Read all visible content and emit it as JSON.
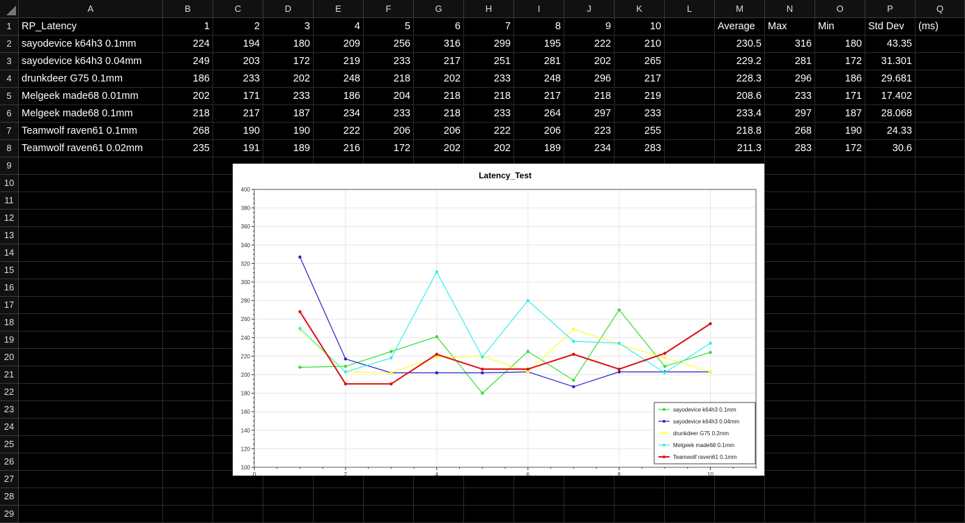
{
  "columns": [
    "A",
    "B",
    "C",
    "D",
    "E",
    "F",
    "G",
    "H",
    "I",
    "J",
    "K",
    "L",
    "M",
    "N",
    "O",
    "P",
    "Q"
  ],
  "rows": [
    "1",
    "2",
    "3",
    "4",
    "5",
    "6",
    "7",
    "8",
    "9",
    "10",
    "11",
    "12",
    "13",
    "14",
    "15",
    "16",
    "17",
    "18",
    "19",
    "20",
    "21",
    "22",
    "23",
    "24",
    "25",
    "26",
    "27",
    "28",
    "29"
  ],
  "header": {
    "label": "RP_Latency",
    "trials": [
      "1",
      "2",
      "3",
      "4",
      "5",
      "6",
      "7",
      "8",
      "9",
      "10"
    ],
    "stats": [
      "Average",
      "Max",
      "Min",
      "Std Dev",
      "(ms)"
    ]
  },
  "data_rows": [
    {
      "name": "sayodevice k64h3 0.1mm",
      "values": [
        "224",
        "194",
        "180",
        "209",
        "256",
        "316",
        "299",
        "195",
        "222",
        "210"
      ],
      "stats": [
        "230.5",
        "316",
        "180",
        "43.35"
      ]
    },
    {
      "name": "sayodevice k64h3 0.04mm",
      "values": [
        "249",
        "203",
        "172",
        "219",
        "233",
        "217",
        "251",
        "281",
        "202",
        "265"
      ],
      "stats": [
        "229.2",
        "281",
        "172",
        "31.301"
      ]
    },
    {
      "name": "drunkdeer G75 0.1mm",
      "values": [
        "186",
        "233",
        "202",
        "248",
        "218",
        "202",
        "233",
        "248",
        "296",
        "217"
      ],
      "stats": [
        "228.3",
        "296",
        "186",
        "29.681"
      ]
    },
    {
      "name": "Melgeek made68 0.01mm",
      "values": [
        "202",
        "171",
        "233",
        "186",
        "204",
        "218",
        "218",
        "217",
        "218",
        "219"
      ],
      "stats": [
        "208.6",
        "233",
        "171",
        "17.402"
      ]
    },
    {
      "name": "Melgeek made68 0.1mm",
      "values": [
        "218",
        "217",
        "187",
        "234",
        "233",
        "218",
        "233",
        "264",
        "297",
        "233"
      ],
      "stats": [
        "233.4",
        "297",
        "187",
        "28.068"
      ]
    },
    {
      "name": "Teamwolf raven61 0.1mm",
      "values": [
        "268",
        "190",
        "190",
        "222",
        "206",
        "206",
        "222",
        "206",
        "223",
        "255"
      ],
      "stats": [
        "218.8",
        "268",
        "190",
        "24.33"
      ]
    },
    {
      "name": "Teamwolf raven61 0.02mm",
      "values": [
        "235",
        "191",
        "189",
        "216",
        "172",
        "202",
        "202",
        "189",
        "234",
        "283"
      ],
      "stats": [
        "211.3",
        "283",
        "172",
        "30.6"
      ]
    }
  ],
  "chart_data": {
    "type": "line",
    "title": "Latency_Test",
    "xlabel": "",
    "ylabel": "",
    "xlim": [
      0,
      11
    ],
    "ylim": [
      100,
      400
    ],
    "xticks": [
      0,
      2,
      4,
      6,
      8,
      10
    ],
    "yticks": [
      100,
      120,
      140,
      160,
      180,
      200,
      220,
      240,
      260,
      280,
      300,
      320,
      340,
      360,
      380,
      400
    ],
    "grid": true,
    "legend_position": "bottom-right",
    "x": [
      1,
      2,
      3,
      4,
      5,
      6,
      7,
      8,
      9,
      10
    ],
    "series": [
      {
        "name": "sayodevice k64h3 0.1mm",
        "color": "#33dd33",
        "values": [
          208,
          209,
          225,
          241,
          180,
          225,
          194,
          270,
          209,
          224
        ]
      },
      {
        "name": "sayodevice k64h3 0.04mm",
        "color": "#2222cc",
        "values": [
          327,
          217,
          202,
          202,
          202,
          203,
          187,
          203,
          203,
          203
        ]
      },
      {
        "name": "drunkdeer G75 0.2mm",
        "color": "#ffff33",
        "values": [
          248,
          203,
          202,
          219,
          220,
          203,
          249,
          233,
          218,
          203
        ]
      },
      {
        "name": "Melgeek made68 0.1mm",
        "color": "#33eeee",
        "values": [
          250,
          203,
          218,
          311,
          219,
          280,
          236,
          234,
          202,
          234
        ]
      },
      {
        "name": "Teamwolf raven61 0.1mm",
        "color": "#dd1111",
        "values": [
          268,
          190,
          190,
          222,
          206,
          206,
          222,
          206,
          223,
          255
        ]
      }
    ]
  }
}
